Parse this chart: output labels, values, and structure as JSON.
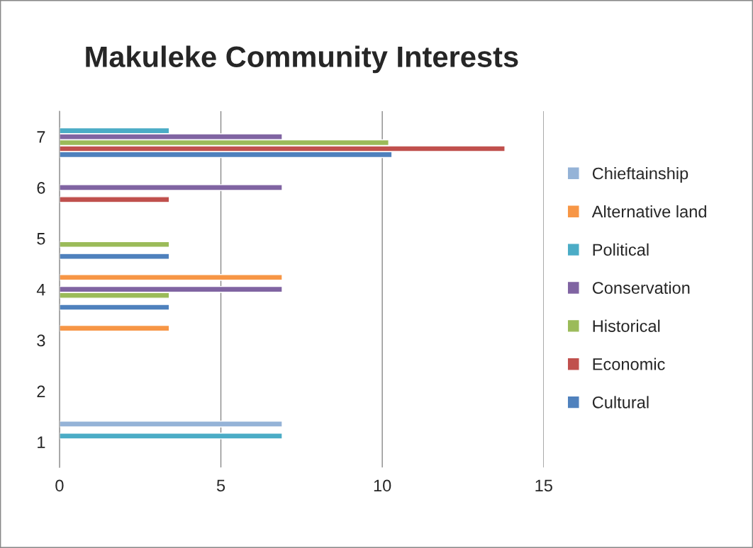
{
  "chart_data": {
    "type": "bar",
    "orientation": "horizontal",
    "title": "Makuleke Community Interests",
    "categories": [
      "7",
      "6",
      "5",
      "4",
      "3",
      "2",
      "1"
    ],
    "series": [
      {
        "name": "Cultural",
        "color": "#4f81bd",
        "values": [
          10.3,
          null,
          3.4,
          3.4,
          null,
          null,
          null
        ]
      },
      {
        "name": "Economic",
        "color": "#c0504d",
        "values": [
          13.8,
          3.4,
          null,
          null,
          null,
          null,
          null
        ]
      },
      {
        "name": "Historical",
        "color": "#9bbb59",
        "values": [
          10.2,
          null,
          3.4,
          3.4,
          null,
          null,
          null
        ]
      },
      {
        "name": "Conservation",
        "color": "#8064a2",
        "values": [
          6.9,
          6.9,
          null,
          6.9,
          null,
          null,
          null
        ]
      },
      {
        "name": "Political",
        "color": "#4bacc6",
        "values": [
          3.4,
          null,
          null,
          null,
          null,
          null,
          6.9
        ]
      },
      {
        "name": "Alternative land",
        "color": "#f79646",
        "values": [
          null,
          null,
          null,
          6.9,
          3.4,
          null,
          null
        ]
      },
      {
        "name": "Chieftainship",
        "color": "#95b3d7",
        "values": [
          null,
          null,
          null,
          null,
          null,
          null,
          6.9
        ]
      }
    ],
    "xlim": [
      0,
      15
    ],
    "xticks": [
      0,
      5,
      10,
      15
    ],
    "grid": "x",
    "legend": "right"
  }
}
